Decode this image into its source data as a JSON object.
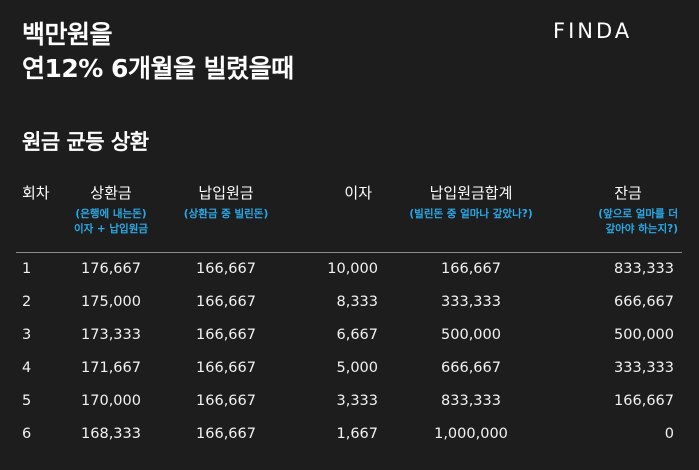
{
  "header": {
    "line1": "백만원을",
    "line2": "연12% 6개월을 빌렸을때",
    "logo": "FINDA"
  },
  "section_title": "원금 균등 상환",
  "table": {
    "columns": [
      {
        "label": "회차",
        "note1": "",
        "note2": ""
      },
      {
        "label": "상환금",
        "note1": "(은행에 내는돈)",
        "note2": "이자 + 납입원금"
      },
      {
        "label": "납입원금",
        "note1": "(상환금 중 빌린돈)",
        "note2": ""
      },
      {
        "label": "이자",
        "note1": "",
        "note2": ""
      },
      {
        "label": "납입원금합계",
        "note1": "(빌린돈 중 얼마나 갚았나?)",
        "note2": ""
      },
      {
        "label": "잔금",
        "note1": "(앞으로 얼마를 더",
        "note2": "갚아야 하는지?)"
      }
    ],
    "rows": [
      [
        "1",
        "176,667",
        "166,667",
        "10,000",
        "166,667",
        "833,333"
      ],
      [
        "2",
        "175,000",
        "166,667",
        "8,333",
        "333,333",
        "666,667"
      ],
      [
        "3",
        "173,333",
        "166,667",
        "6,667",
        "500,000",
        "500,000"
      ],
      [
        "4",
        "171,667",
        "166,667",
        "5,000",
        "666,667",
        "333,333"
      ],
      [
        "5",
        "170,000",
        "166,667",
        "3,333",
        "833,333",
        "166,667"
      ],
      [
        "6",
        "168,333",
        "166,667",
        "1,667",
        "1,000,000",
        "0"
      ]
    ]
  },
  "colors": {
    "background": "#1d1d1d",
    "accent": "#29a8e6",
    "text": "#ffffff"
  }
}
